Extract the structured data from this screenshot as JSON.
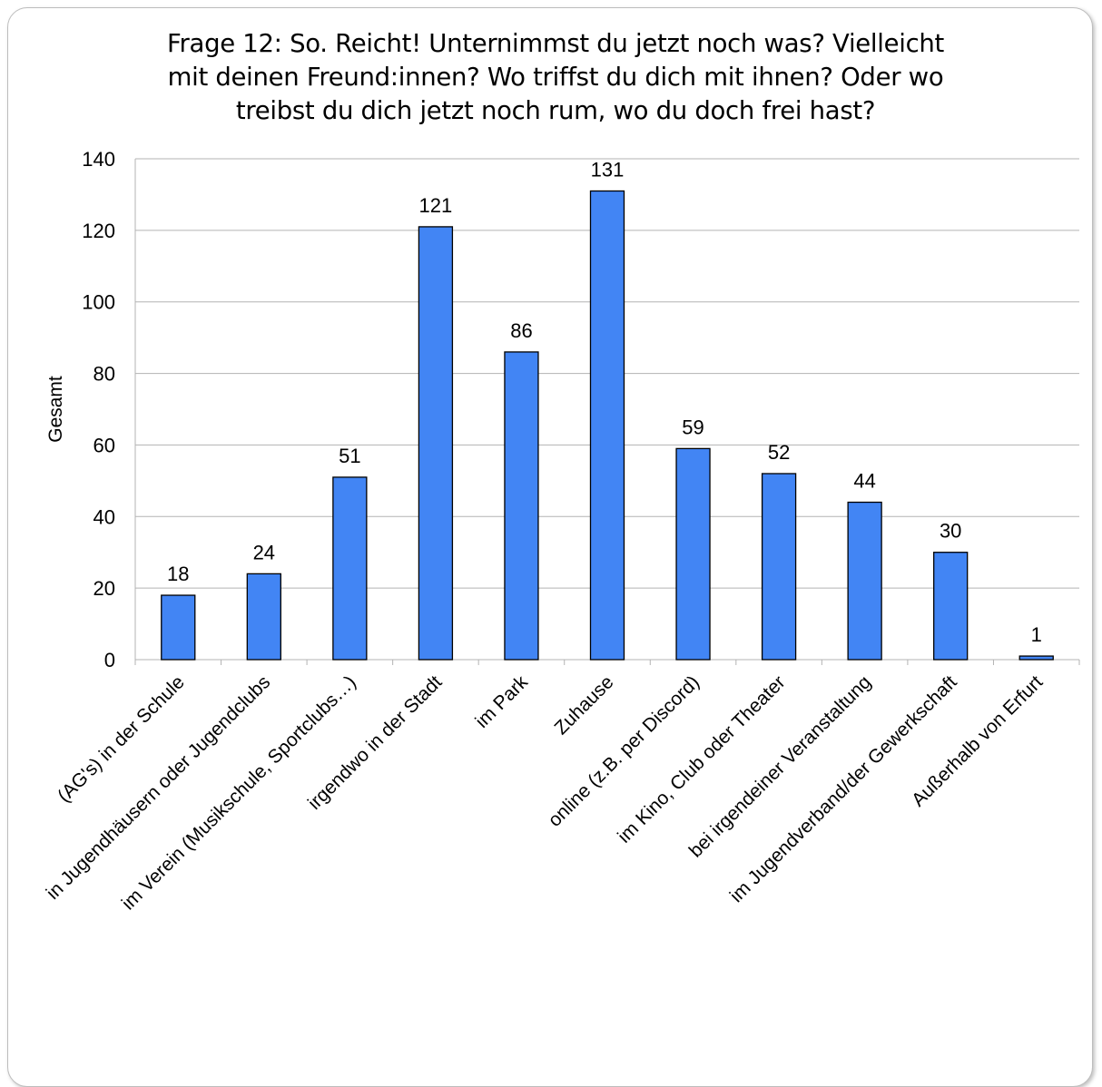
{
  "chart_data": {
    "type": "bar",
    "title": "Frage 12: So. Reicht! Unternimmst du jetzt noch was? Vielleicht mit deinen Freund:innen? Wo triffst du dich mit ihnen? Oder wo treibst du dich jetzt noch rum, wo du doch frei hast?",
    "title_lines": [
      "Frage 12: So. Reicht! Unternimmst du jetzt noch was? Vielleicht",
      "mit deinen Freund:innen? Wo triffst du dich mit ihnen? Oder wo",
      "treibst du dich jetzt noch rum, wo du doch frei hast?"
    ],
    "ylabel": "Gesamt",
    "xlabel": "",
    "ylim": [
      0,
      140
    ],
    "yticks": [
      0,
      20,
      40,
      60,
      80,
      100,
      120,
      140
    ],
    "grid": true,
    "legend": "none",
    "bar_color": "#4285F4",
    "categories": [
      "(AG's) in der Schule",
      "in Jugendhäusern oder Jugendclubs",
      "im Verein (Musikschule, Sportclubs…)",
      "irgendwo in der Stadt",
      "im Park",
      "Zuhause",
      "online (z.B. per Discord)",
      "im Kino, Club oder Theater",
      "bei irgendeiner Veranstaltung",
      "im Jugendverband/der Gewerkschaft",
      "Außerhalb von Erfurt"
    ],
    "values": [
      18,
      24,
      51,
      121,
      86,
      131,
      59,
      52,
      44,
      30,
      1
    ]
  }
}
